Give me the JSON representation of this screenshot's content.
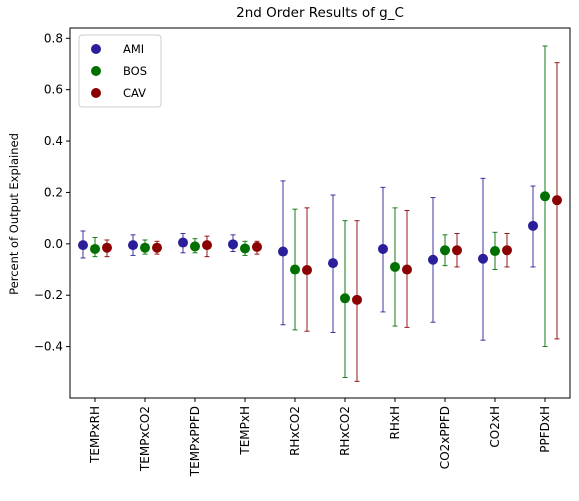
{
  "chart_data": {
    "type": "scatter",
    "title": "2nd Order Results of g_C",
    "xlabel": "",
    "ylabel": "Percent of Output Explained",
    "categories": [
      "TEMPxRH",
      "TEMPxCO2",
      "TEMPxPPFD",
      "TEMPxH",
      "RHxCO2",
      "RHxCO2",
      "RHxH",
      "CO2xPPFD",
      "CO2xH",
      "PPFDxH"
    ],
    "ylim": [
      -0.6,
      0.84
    ],
    "yticks": [
      -0.4,
      -0.2,
      0.0,
      0.2,
      0.4,
      0.6,
      0.8
    ],
    "ytick_labels": [
      "−0.4",
      "−0.2",
      "0.0",
      "0.2",
      "0.4",
      "0.6",
      "0.8"
    ],
    "grid": false,
    "legend": {
      "placement": "top-left"
    },
    "series": [
      {
        "name": "AMI",
        "color": "#2b1e9a",
        "values": [
          -0.005,
          -0.005,
          0.005,
          -0.002,
          -0.03,
          -0.075,
          -0.02,
          -0.062,
          -0.058,
          0.07
        ],
        "err_low": [
          -0.055,
          -0.045,
          -0.035,
          -0.03,
          -0.315,
          -0.345,
          -0.265,
          -0.305,
          -0.375,
          -0.09
        ],
        "err_high": [
          0.05,
          0.035,
          0.04,
          0.035,
          0.245,
          0.19,
          0.22,
          0.18,
          0.255,
          0.225
        ]
      },
      {
        "name": "BOS",
        "color": "#007000",
        "values": [
          -0.02,
          -0.015,
          -0.01,
          -0.018,
          -0.1,
          -0.212,
          -0.09,
          -0.025,
          -0.028,
          0.185
        ],
        "err_low": [
          -0.05,
          -0.04,
          -0.035,
          -0.045,
          -0.335,
          -0.52,
          -0.32,
          -0.085,
          -0.1,
          -0.4
        ],
        "err_high": [
          0.025,
          0.015,
          0.02,
          0.01,
          0.135,
          0.09,
          0.14,
          0.035,
          0.045,
          0.77
        ]
      },
      {
        "name": "CAV",
        "color": "#8b0000",
        "values": [
          -0.015,
          -0.015,
          -0.005,
          -0.012,
          -0.102,
          -0.218,
          -0.1,
          -0.025,
          -0.025,
          0.17
        ],
        "err_low": [
          -0.05,
          -0.04,
          -0.05,
          -0.04,
          -0.34,
          -0.535,
          -0.325,
          -0.09,
          -0.09,
          -0.37
        ],
        "err_high": [
          0.015,
          0.01,
          0.03,
          0.01,
          0.14,
          0.09,
          0.13,
          0.04,
          0.04,
          0.705
        ]
      }
    ]
  }
}
